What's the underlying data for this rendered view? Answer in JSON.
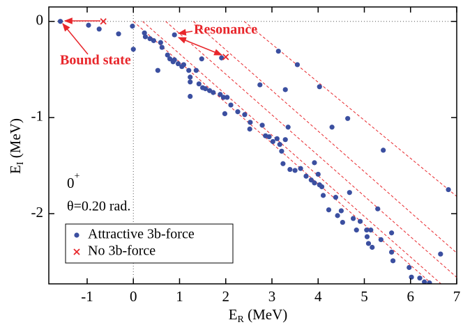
{
  "chart_data": {
    "type": "scatter",
    "xlabel": {
      "main": "E",
      "sub": "R",
      "rest": " (MeV)"
    },
    "ylabel": {
      "main": "E",
      "sub": "I",
      "rest": " (MeV)"
    },
    "annotations": {
      "state": {
        "main": "0",
        "sup": "+"
      },
      "angle": "θ=0.20  rad.",
      "bound": "Bound state",
      "resonance": "Resonance"
    },
    "xlim": [
      -1.83,
      7
    ],
    "ylim": [
      -2.73,
      0.15
    ],
    "xticks": [
      -1,
      0,
      1,
      2,
      3,
      4,
      5,
      6,
      7
    ],
    "yticks": [
      -2,
      -1,
      0
    ],
    "legend": "lower left",
    "dashed_lines": [
      {
        "x": [
          2.4,
          7
        ],
        "y": [
          0,
          -1.82
        ]
      },
      {
        "x": [
          0,
          6.46
        ],
        "y": [
          0,
          -2.73
        ]
      },
      {
        "x": [
          0.2,
          6.66
        ],
        "y": [
          0,
          -2.73
        ]
      },
      {
        "x": [
          0.7,
          7.16
        ],
        "y": [
          0,
          -2.73
        ]
      },
      {
        "x": [
          1.3,
          7.76
        ],
        "y": [
          0,
          -2.73
        ]
      }
    ],
    "series": [
      {
        "name": "Attractive 3b-force",
        "color": "#3b4fa0",
        "marker": "circle",
        "x": [
          -1.58,
          -0.97,
          -0.74,
          -0.32,
          -0.02,
          0,
          0.53,
          0.24,
          0.26,
          0.36,
          0.44,
          0.59,
          0.62,
          0.74,
          0.79,
          0.86,
          0.89,
          0.97,
          1.05,
          1.09,
          1.2,
          1.23,
          1.23,
          1.23,
          1.36,
          1.42,
          1.48,
          1.5,
          1.56,
          1.65,
          1.73,
          1.88,
          1.95,
          1.98,
          2.03,
          2.11,
          2.26,
          2.41,
          2.52,
          2.53,
          2.74,
          2.79,
          2.86,
          2.94,
          3.02,
          3.11,
          3.17,
          3.21,
          3.24,
          3.29,
          3.29,
          3.35,
          3.39,
          3.5,
          3.62,
          3.74,
          3.85,
          3.92,
          4.0,
          4.03,
          4.08,
          4.11,
          4.23,
          4.3,
          4.38,
          4.42,
          4.5,
          4.53,
          4.68,
          4.76,
          4.83,
          4.91,
          5.05,
          5.06,
          5.09,
          5.14,
          5.17,
          5.29,
          5.36,
          5.59,
          5.62,
          5.97,
          6.02,
          6.2,
          6.3,
          6.41,
          6.65,
          6.82,
          4.64,
          5.41,
          3.14,
          3.55,
          4.03,
          0.89,
          1.91,
          3.92,
          5.59
        ],
        "values": [
          0,
          -0.04,
          -0.08,
          -0.13,
          -0.05,
          -0.29,
          -0.51,
          -0.12,
          -0.16,
          -0.18,
          -0.2,
          -0.22,
          -0.27,
          -0.35,
          -0.39,
          -0.42,
          -0.4,
          -0.44,
          -0.47,
          -0.45,
          -0.51,
          -0.58,
          -0.63,
          -0.78,
          -0.51,
          -0.65,
          -0.39,
          -0.69,
          -0.7,
          -0.72,
          -0.74,
          -0.76,
          -0.79,
          -0.96,
          -0.79,
          -0.87,
          -0.94,
          -0.97,
          -1.12,
          -1.05,
          -0.66,
          -1.08,
          -1.19,
          -1.2,
          -1.25,
          -1.22,
          -1.28,
          -1.35,
          -1.48,
          -1.23,
          -0.71,
          -1.1,
          -1.54,
          -1.55,
          -1.53,
          -1.61,
          -1.65,
          -1.68,
          -1.59,
          -1.7,
          -1.72,
          -1.81,
          -1.96,
          -1.1,
          -1.83,
          -2.02,
          -1.97,
          -2.09,
          -1.78,
          -2.05,
          -2.17,
          -2.08,
          -2.17,
          -2.24,
          -2.31,
          -2.17,
          -2.35,
          -1.95,
          -2.27,
          -2.4,
          -2.49,
          -2.56,
          -2.66,
          -2.67,
          -2.71,
          -2.72,
          -2.42,
          -1.75,
          -1.01,
          -1.34,
          -0.31,
          -0.45,
          -0.68,
          -0.14,
          -0.38,
          -1.47,
          -2.2
        ]
      },
      {
        "name": "No 3b-force",
        "color": "#e8262b",
        "marker": "x",
        "x": [
          -0.65,
          2.0
        ],
        "values": [
          0,
          -0.37
        ]
      }
    ]
  }
}
